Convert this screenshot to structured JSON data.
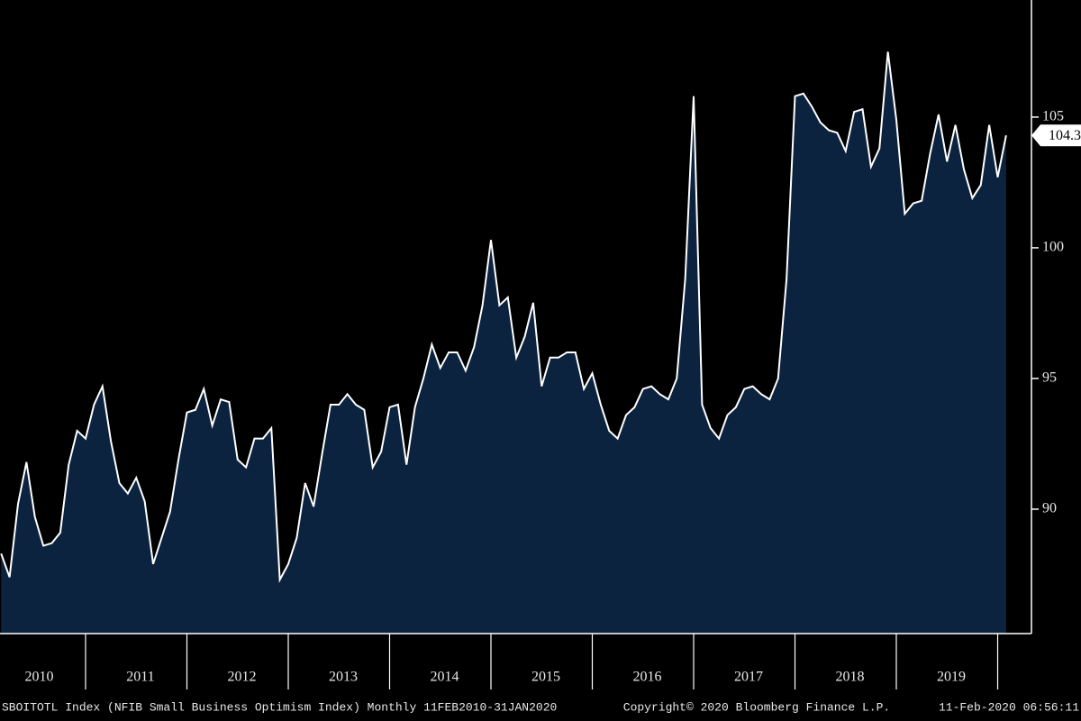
{
  "chart_data": {
    "type": "area",
    "xtick_labels": [
      "2010",
      "2011",
      "2012",
      "2013",
      "2014",
      "2015",
      "2016",
      "2017",
      "2018",
      "2019"
    ],
    "values": [
      88.3,
      87.4,
      90.2,
      91.8,
      89.7,
      88.6,
      88.7,
      89.1,
      91.7,
      93.0,
      92.7,
      94.0,
      94.7,
      92.6,
      91.0,
      90.6,
      91.2,
      90.3,
      87.9,
      88.9,
      89.9,
      91.9,
      93.7,
      93.8,
      94.6,
      93.2,
      94.2,
      94.1,
      91.9,
      91.6,
      92.7,
      92.7,
      93.1,
      87.3,
      87.9,
      88.9,
      91.0,
      90.1,
      92.1,
      94.0,
      94.0,
      94.4,
      94.0,
      93.8,
      91.6,
      92.2,
      93.9,
      94.0,
      91.7,
      93.9,
      95.0,
      96.3,
      95.4,
      96.0,
      96.0,
      95.3,
      96.2,
      97.8,
      100.3,
      97.8,
      98.1,
      95.8,
      96.6,
      97.9,
      94.7,
      95.8,
      95.8,
      96.0,
      96.0,
      94.6,
      95.2,
      94.0,
      93.0,
      92.7,
      93.6,
      93.9,
      94.6,
      94.7,
      94.4,
      94.2,
      95.0,
      98.8,
      105.8,
      94.0,
      93.1,
      92.7,
      93.6,
      93.9,
      94.6,
      94.7,
      94.4,
      94.2,
      95.0,
      98.8,
      105.8,
      105.9,
      105.4,
      104.8,
      104.5,
      104.4,
      103.7,
      105.2,
      105.3,
      103.1,
      103.8,
      107.5,
      104.9,
      101.3,
      101.7,
      101.8,
      103.6,
      105.1,
      103.3,
      104.7,
      103.0,
      101.9,
      102.4,
      104.7,
      102.7,
      104.3
    ],
    "color": "#0c2340",
    "line_color": "#ffffff",
    "ylim": [
      85.24,
      109.48
    ],
    "yticks": [
      90,
      95,
      100,
      105
    ],
    "footer_left": "SBOITOTL Index (NFIB Small Business Optimism Index) Monthly 11FEB2010-31JAN2020",
    "footer_center": "Copyright© 2020 Bloomberg Finance L.P.",
    "footer_right": "11-Feb-2020 06:56:11"
  }
}
